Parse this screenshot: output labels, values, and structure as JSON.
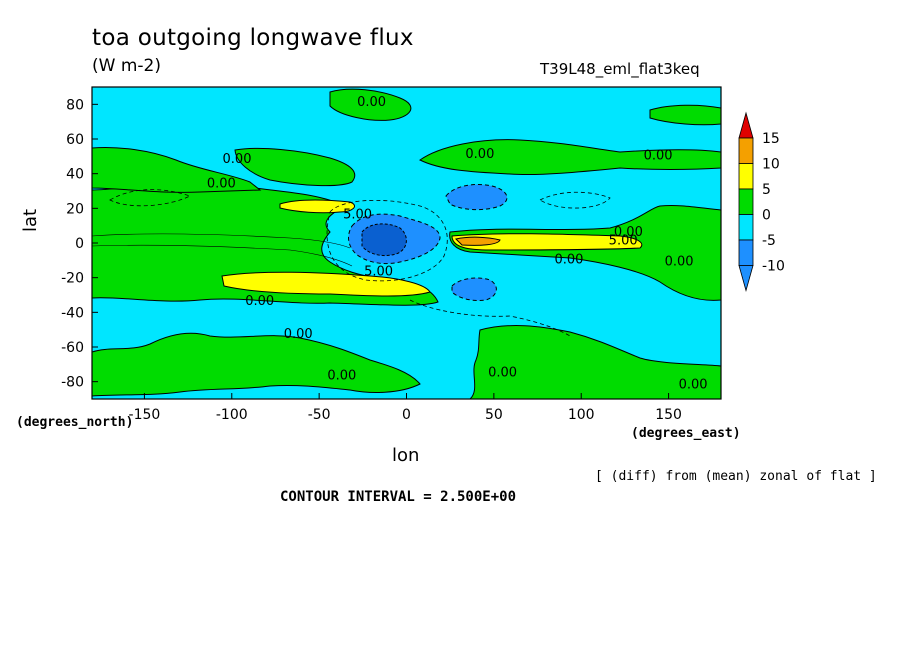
{
  "chart_data": {
    "type": "heatmap",
    "title": "toa outgoing longwave flux",
    "units": "(W m-2)",
    "run_id": "T39L48_eml_flat3keq",
    "xlabel": "lon",
    "ylabel": "lat",
    "x_units": "(degrees_east)",
    "y_units": "(degrees_north)",
    "xlim": [
      -180,
      180
    ],
    "ylim": [
      -90,
      90
    ],
    "x_ticks": [
      -150,
      -100,
      -50,
      0,
      50,
      100,
      150
    ],
    "y_ticks": [
      -80,
      -60,
      -40,
      -20,
      0,
      20,
      40,
      60,
      80
    ],
    "subtitle": "[ (diff) from (mean) zonal of flat ]",
    "contour_interval_text": "CONTOUR INTERVAL = 2.500E+00",
    "colorbar": {
      "labels": [
        15,
        10,
        5,
        0,
        -5,
        -10
      ],
      "levels": [
        {
          "from": 15,
          "to": 20,
          "color": "#e00000"
        },
        {
          "from": 10,
          "to": 15,
          "color": "#f4a000"
        },
        {
          "from": 5,
          "to": 10,
          "color": "#ffff00"
        },
        {
          "from": 0,
          "to": 5,
          "color": "#00dc00"
        },
        {
          "from": -5,
          "to": 0,
          "color": "#00e6ff"
        },
        {
          "from": -10,
          "to": -5,
          "color": "#1e90ff"
        },
        {
          "from": -15,
          "to": -10,
          "color": "#1e90ff"
        }
      ]
    },
    "contour_labels": [
      {
        "text": "0.00",
        "lon": -20,
        "lat": 82
      },
      {
        "text": "0.00",
        "lon": -97,
        "lat": 49
      },
      {
        "text": "0.00",
        "lon": 42,
        "lat": 52
      },
      {
        "text": "0.00",
        "lon": 144,
        "lat": 51
      },
      {
        "text": "0.00",
        "lon": -106,
        "lat": 35
      },
      {
        "text": "5.00",
        "lon": -28,
        "lat": 17
      },
      {
        "text": "0.00",
        "lon": 127,
        "lat": 7
      },
      {
        "text": "5.00",
        "lon": 124,
        "lat": 2
      },
      {
        "text": "0.00",
        "lon": 93,
        "lat": -9
      },
      {
        "text": "0.00",
        "lon": 156,
        "lat": -10
      },
      {
        "text": "5.00",
        "lon": -16,
        "lat": -16
      },
      {
        "text": "0.00",
        "lon": -84,
        "lat": -33
      },
      {
        "text": "0.00",
        "lon": -62,
        "lat": -52
      },
      {
        "text": "0.00",
        "lon": -37,
        "lat": -76
      },
      {
        "text": "0.00",
        "lon": 55,
        "lat": -74
      },
      {
        "text": "0.00",
        "lon": 164,
        "lat": -81
      }
    ],
    "regions": [
      {
        "level": "+0..5",
        "lon": [
          -180,
          -30
        ],
        "lat": [
          -30,
          30
        ],
        "note": "broad tropical positive band west of 0"
      },
      {
        "level": "+5..10",
        "lon": [
          -62,
          -15
        ],
        "lat": [
          15,
          22
        ],
        "note": "northern subtropical maximum"
      },
      {
        "level": "+5..10",
        "lon": [
          -110,
          -20
        ],
        "lat": [
          -26,
          -16
        ],
        "note": "southern subtropical maximum"
      },
      {
        "level": "+5..10",
        "lon": [
          25,
          120
        ],
        "lat": [
          -1,
          2
        ],
        "note": "equatorial maximum east of 0"
      },
      {
        "level": "-5..-10",
        "lon": [
          -35,
          20
        ],
        "lat": [
          -12,
          12
        ],
        "note": "equatorial minimum near 0"
      },
      {
        "level": "-5..-10",
        "lon": [
          20,
          50
        ],
        "lat": [
          15,
          27
        ],
        "note": "northern minimum"
      },
      {
        "level": "-5..-10",
        "lon": [
          25,
          50
        ],
        "lat": [
          -30,
          -18
        ],
        "note": "southern minimum"
      },
      {
        "level": "-5..0",
        "lon": [
          -180,
          180
        ],
        "lat": [
          -90,
          90
        ],
        "note": "background"
      }
    ]
  }
}
